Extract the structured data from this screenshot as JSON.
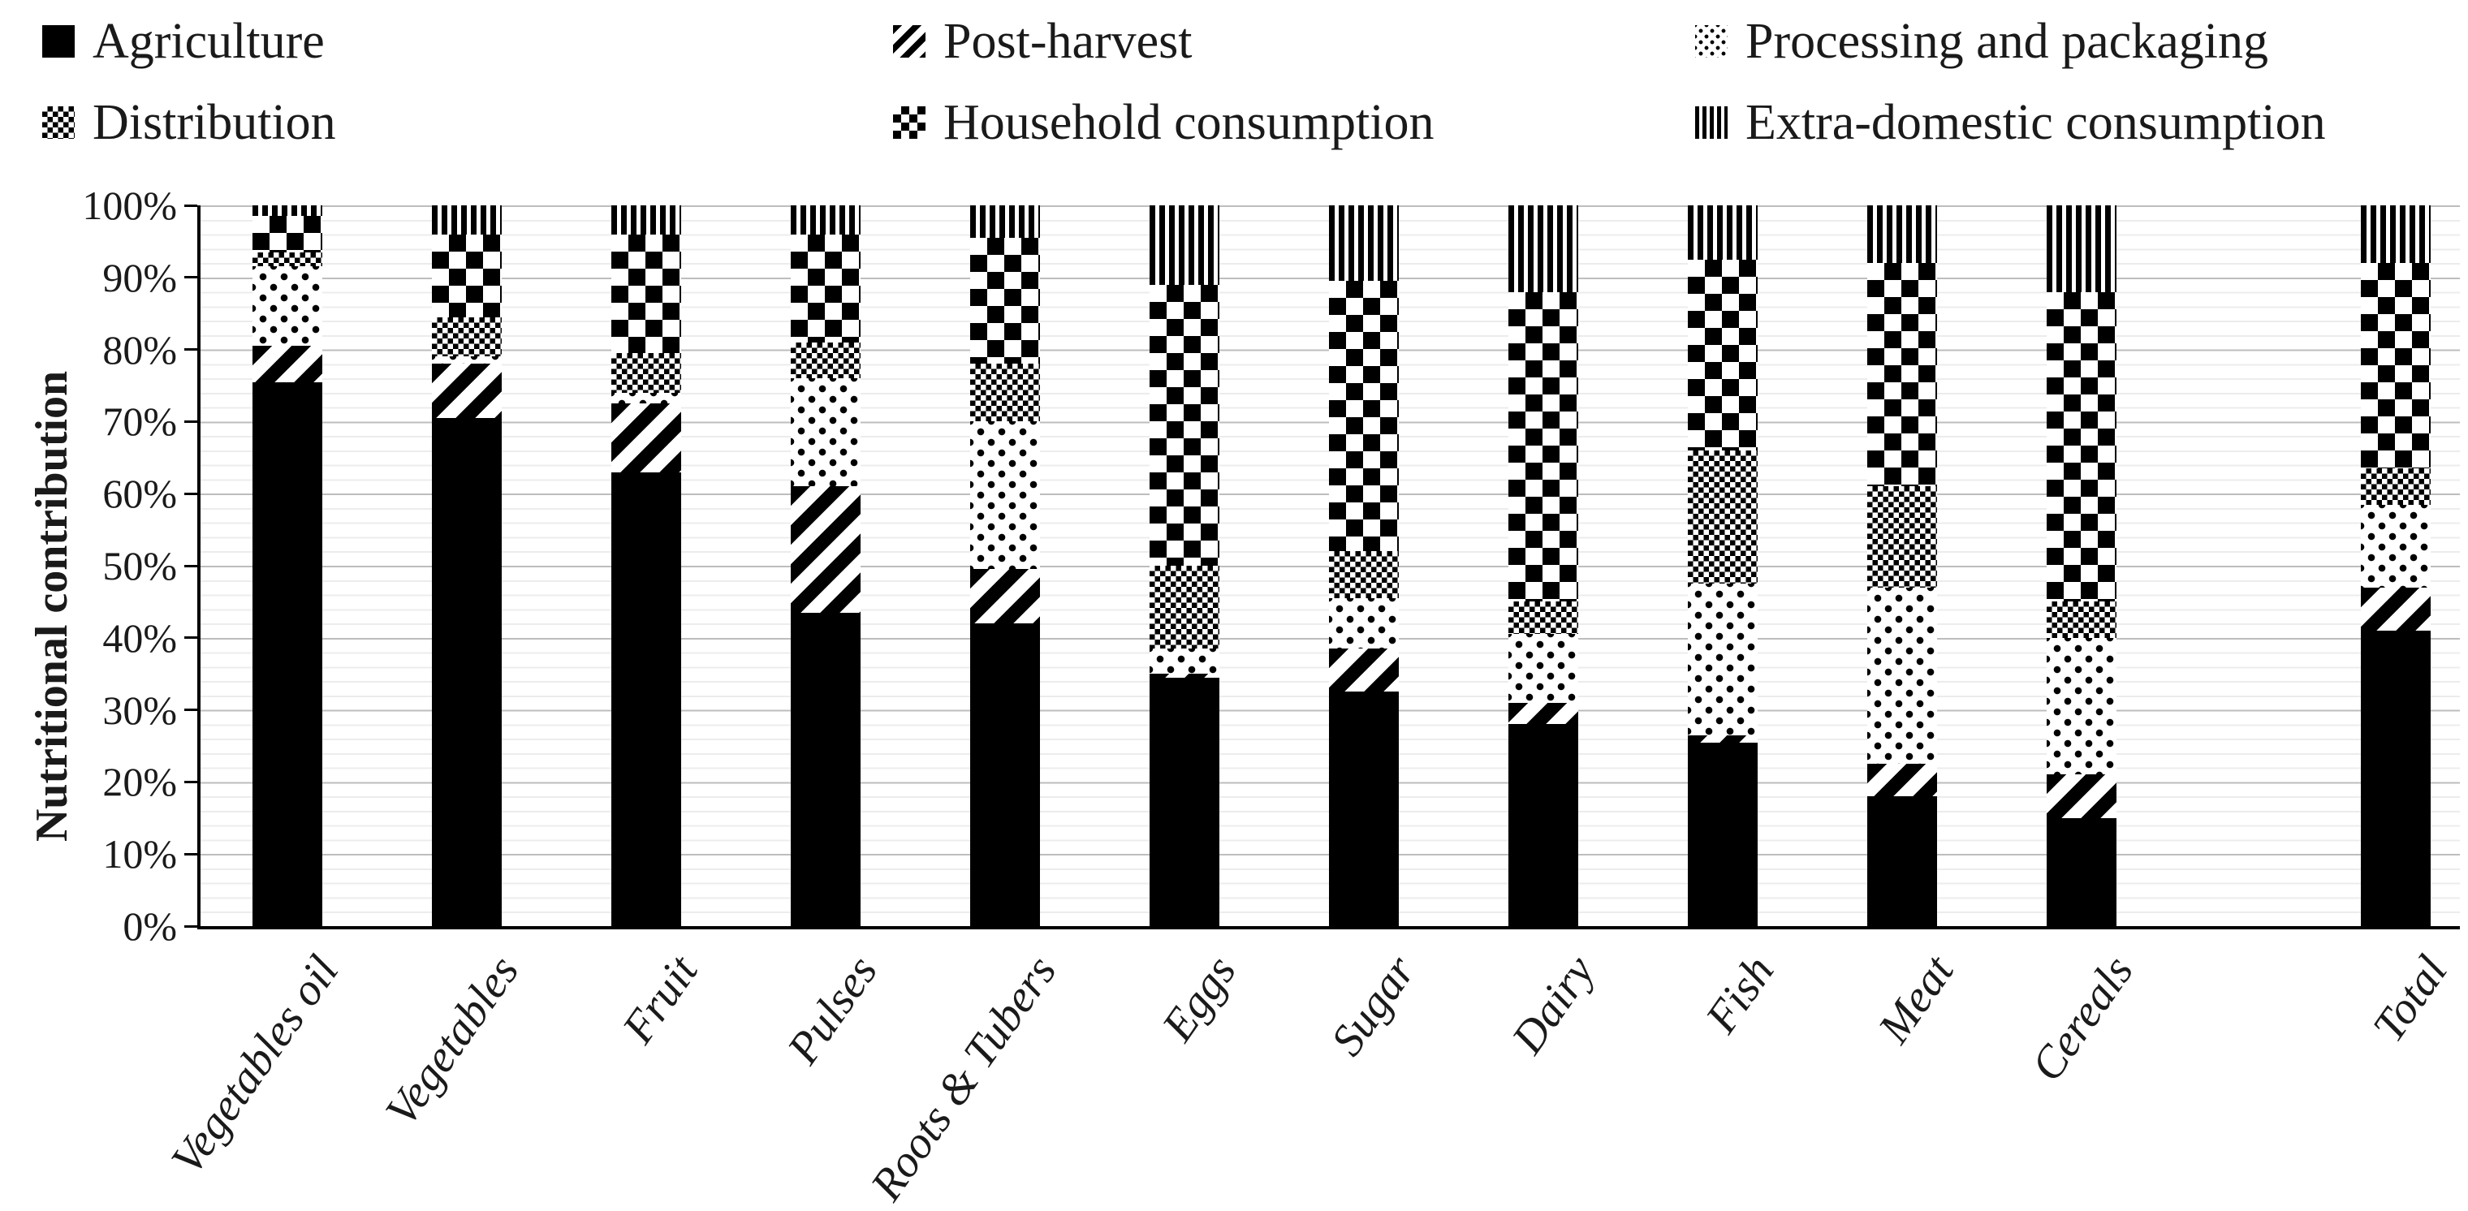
{
  "y_axis": {
    "title": "Nutritional contribution",
    "tick_labels": [
      "100%",
      "90%",
      "80%",
      "70%",
      "60%",
      "50%",
      "40%",
      "30%",
      "20%",
      "10%",
      "0%"
    ],
    "range_percent": [
      0,
      100
    ]
  },
  "chart_data": {
    "type": "bar",
    "stacked": true,
    "percent_stacked": true,
    "unit": "%",
    "ylabel": "Nutritional contribution",
    "ylim": [
      0,
      100
    ],
    "gridlines": "major every 10%, minor every 2%",
    "legend_position": "top",
    "categories": [
      "Vegetables oil",
      "Vegetables",
      "Fruit",
      "Pulses",
      "Roots & Tubers",
      "Eggs",
      "Sugar",
      "Dairy",
      "Fish",
      "Meat",
      "Cereals",
      "Total"
    ],
    "series": [
      {
        "name": "Agriculture",
        "pattern": "agriculture",
        "values": [
          75.5,
          70.5,
          63,
          43.5,
          42,
          34.5,
          32.5,
          28,
          25.5,
          18,
          15,
          41
        ]
      },
      {
        "name": "Post-harvest",
        "pattern": "post-harvest",
        "values": [
          5,
          7.5,
          9.5,
          17.5,
          7.5,
          0.5,
          6,
          3,
          1,
          4.5,
          6,
          6
        ]
      },
      {
        "name": "Processing and packaging",
        "pattern": "processing",
        "values": [
          11,
          1,
          1.5,
          15,
          20.5,
          3.5,
          7,
          9.5,
          21,
          24.5,
          19,
          11.5
        ]
      },
      {
        "name": "Distribution",
        "pattern": "distribution",
        "values": [
          2,
          5.5,
          5.5,
          5,
          8,
          11.5,
          6.5,
          4.5,
          18.5,
          14,
          5,
          5
        ]
      },
      {
        "name": "Household consumption",
        "pattern": "household",
        "values": [
          5,
          11.5,
          16.5,
          15,
          17.5,
          39,
          37.5,
          43,
          26.5,
          31,
          43,
          28.5
        ]
      },
      {
        "name": "Extra-domestic consumption",
        "pattern": "extra-domestic",
        "values": [
          1.5,
          4,
          4,
          4,
          4.5,
          11,
          10.5,
          12,
          7.5,
          8,
          12,
          8
        ]
      }
    ]
  },
  "colors": {
    "ink": "#000000",
    "major_gridline": "#bdbdbd",
    "minor_gridline": "#ececec",
    "background": "#ffffff"
  }
}
